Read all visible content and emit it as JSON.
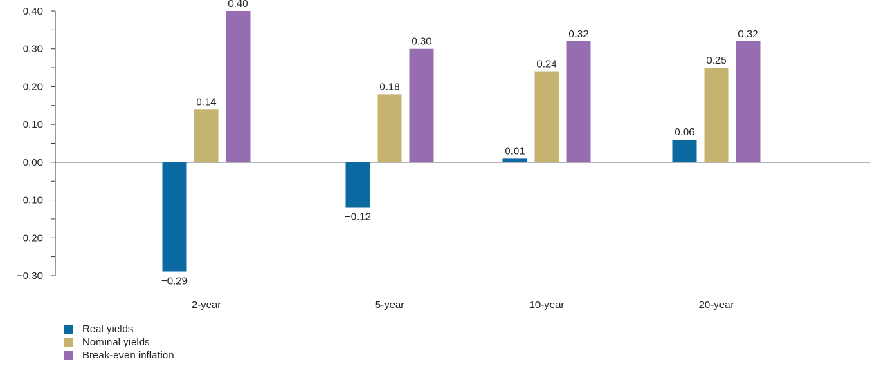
{
  "chart_data": {
    "type": "bar",
    "categories": [
      "2-year",
      "5-year",
      "10-year",
      "20-year"
    ],
    "series": [
      {
        "name": "Real yields",
        "color": "#0a6aa1",
        "values": [
          -0.29,
          -0.12,
          0.01,
          0.06
        ],
        "labels": [
          "−0.29",
          "−0.12",
          "0.01",
          "0.06"
        ]
      },
      {
        "name": "Nominal yields",
        "color": "#c4b46f",
        "values": [
          0.14,
          0.18,
          0.24,
          0.25
        ],
        "labels": [
          "0.14",
          "0.18",
          "0.24",
          "0.25"
        ]
      },
      {
        "name": "Break-even inflation",
        "color": "#956db0",
        "values": [
          0.4,
          0.3,
          0.32,
          0.32
        ],
        "labels": [
          "0.40",
          "0.30",
          "0.32",
          "0.32"
        ]
      }
    ],
    "ylim": [
      -0.3,
      0.4
    ],
    "yticks": [
      {
        "value": 0.4,
        "label": "0.40"
      },
      {
        "value": 0.3,
        "label": "0.30"
      },
      {
        "value": 0.2,
        "label": "0.20"
      },
      {
        "value": 0.1,
        "label": "0.10"
      },
      {
        "value": 0.0,
        "label": "0.00"
      },
      {
        "value": -0.1,
        "label": "−0.10"
      },
      {
        "value": -0.2,
        "label": "−0.20"
      },
      {
        "value": -0.3,
        "label": "−0.30"
      }
    ],
    "minor_tick_step": 0.05,
    "grid": false,
    "legend_position": "bottom-left"
  }
}
